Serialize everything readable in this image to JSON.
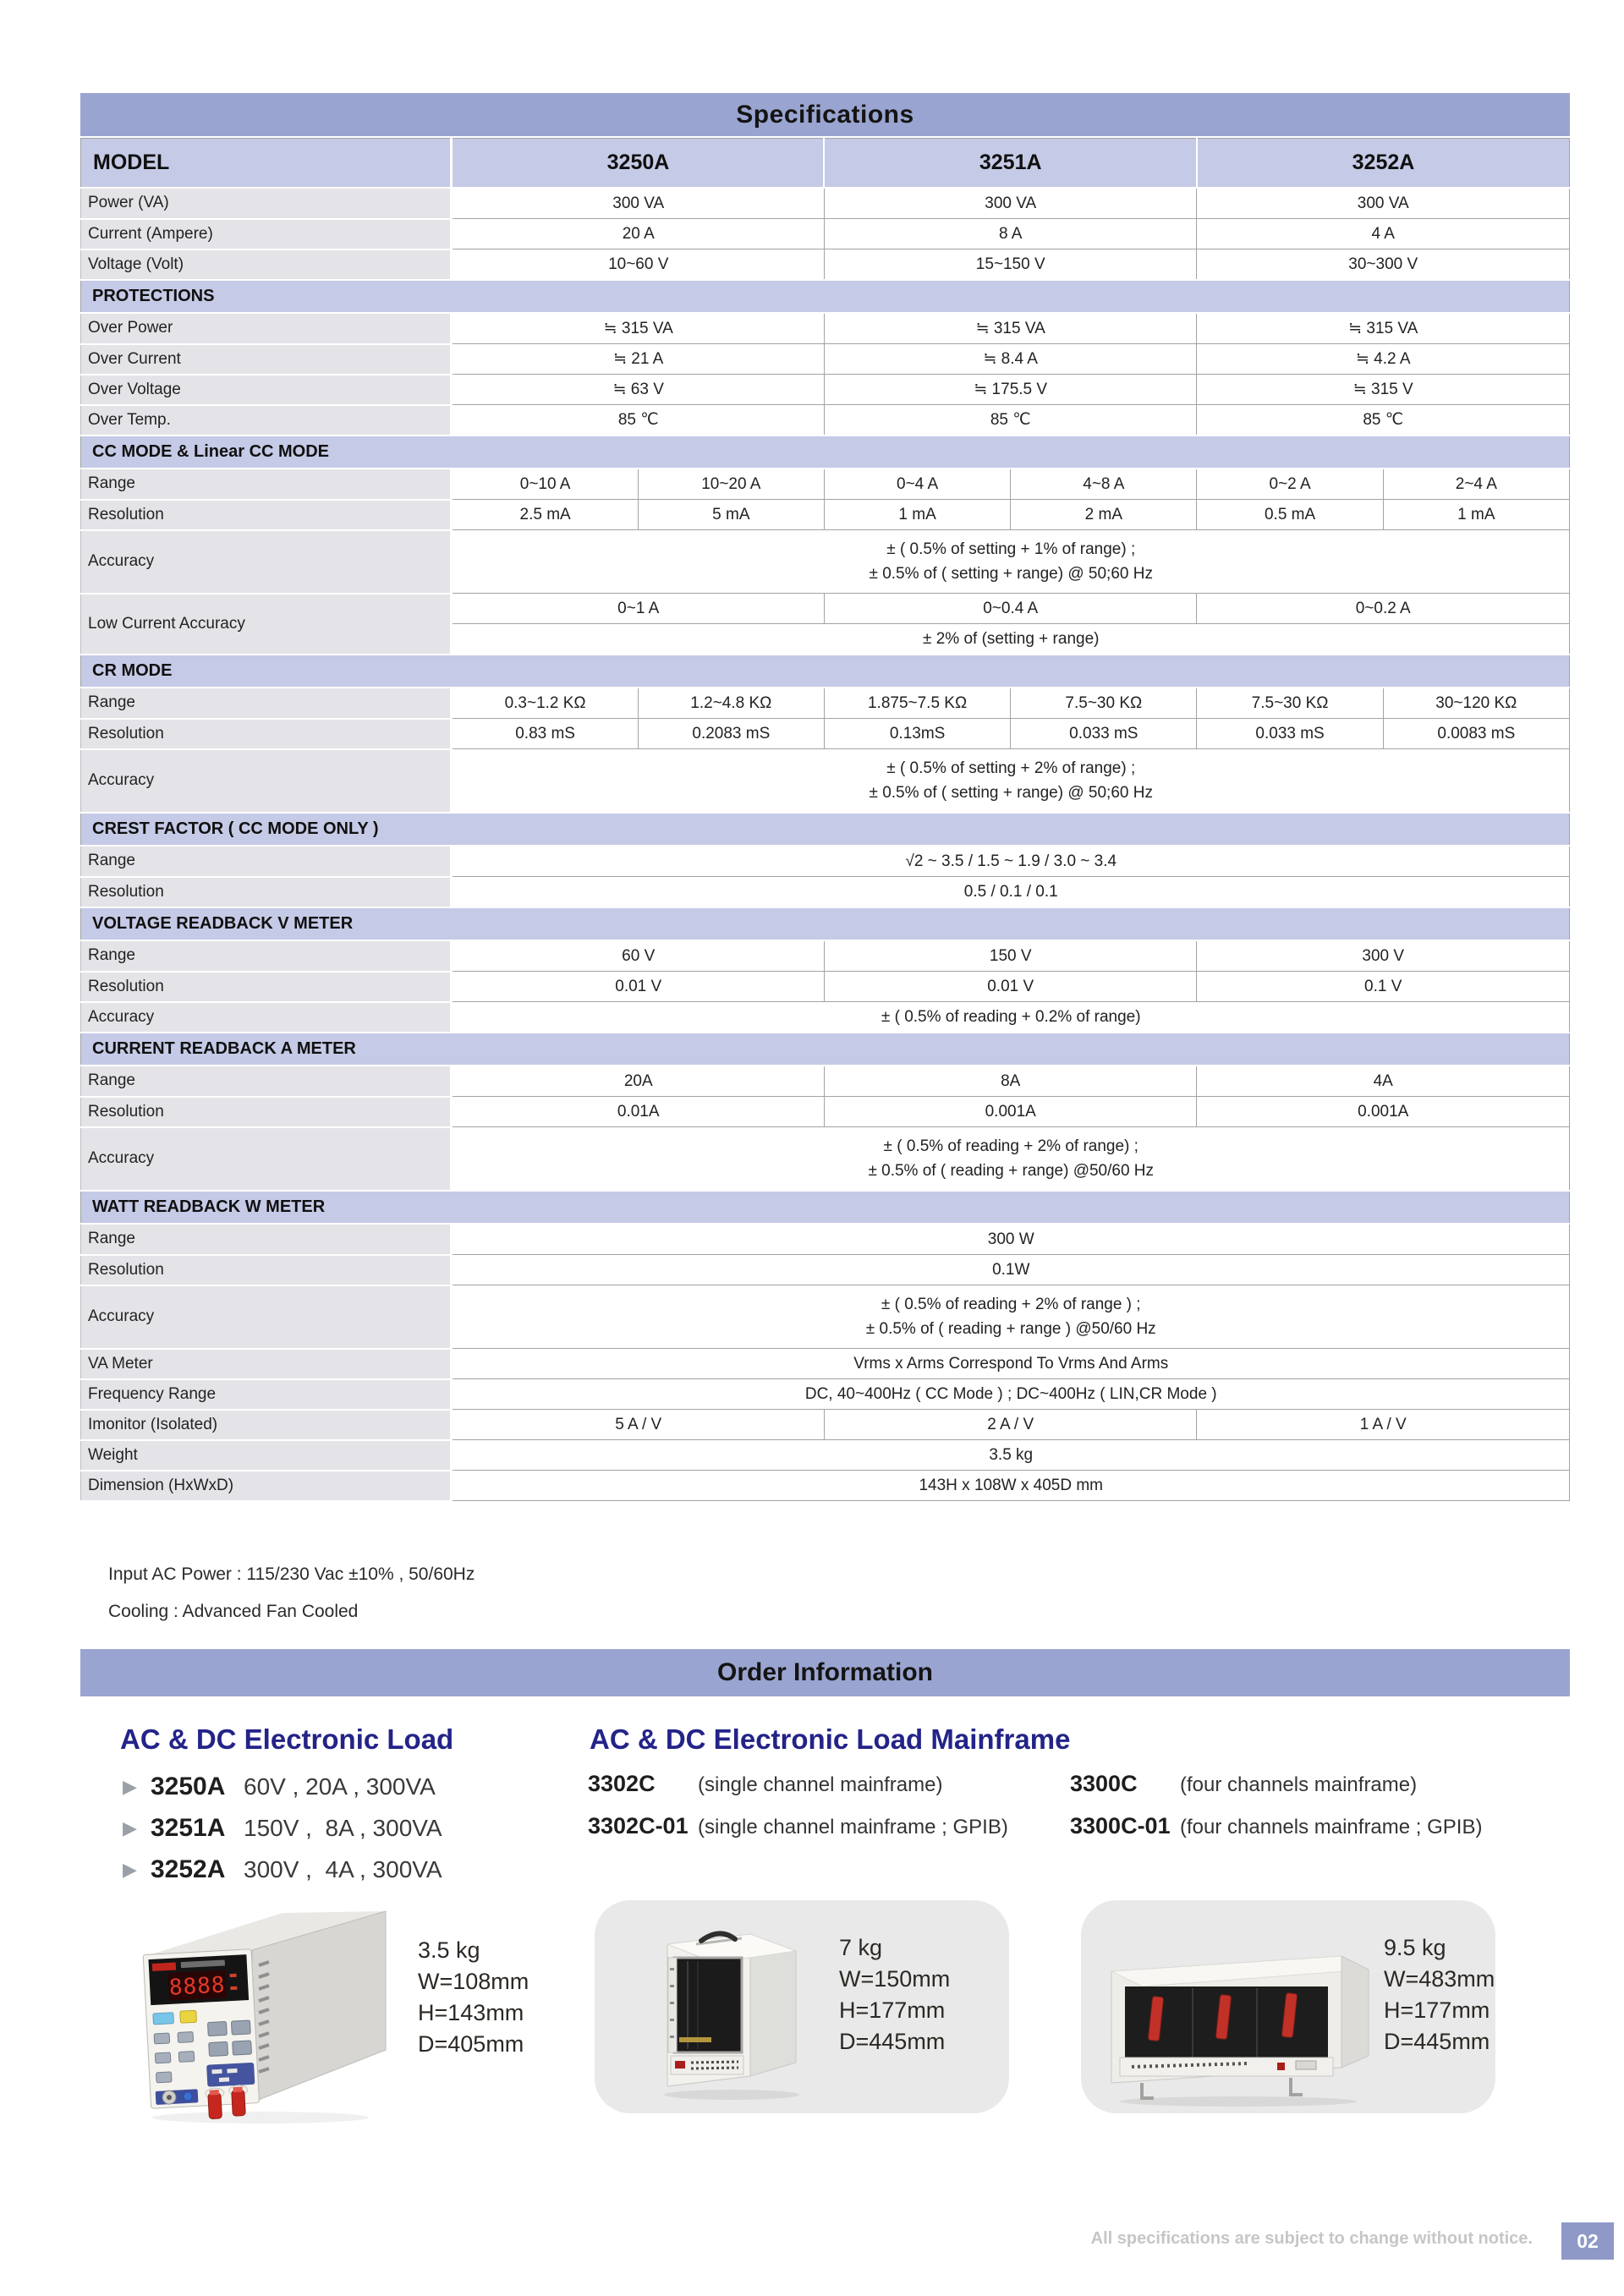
{
  "page": {
    "footer_note": "All specifications are subject to change without notice.",
    "page_number": "02"
  },
  "spec_table": {
    "title": "Specifications",
    "model_label": "MODEL",
    "columns": [
      "3250A",
      "3251A",
      "3252A"
    ],
    "rows": [
      {
        "label": "Power (VA)",
        "cells": [
          {
            "t": "300 VA",
            "s": 2
          },
          {
            "t": "300 VA",
            "s": 2
          },
          {
            "t": "300 VA",
            "s": 2
          }
        ]
      },
      {
        "label": "Current (Ampere)",
        "cells": [
          {
            "t": "20 A",
            "s": 2
          },
          {
            "t": "8 A",
            "s": 2
          },
          {
            "t": "4 A",
            "s": 2
          }
        ]
      },
      {
        "label": "Voltage (Volt)",
        "cells": [
          {
            "t": "10~60 V",
            "s": 2
          },
          {
            "t": "15~150 V",
            "s": 2
          },
          {
            "t": "30~300 V",
            "s": 2
          }
        ]
      },
      {
        "section": "PROTECTIONS"
      },
      {
        "label": "Over Power",
        "cells": [
          {
            "t": "≒ 315 VA",
            "s": 2
          },
          {
            "t": "≒ 315 VA",
            "s": 2
          },
          {
            "t": "≒ 315 VA",
            "s": 2
          }
        ]
      },
      {
        "label": "Over Current",
        "cells": [
          {
            "t": "≒ 21 A",
            "s": 2
          },
          {
            "t": "≒ 8.4 A",
            "s": 2
          },
          {
            "t": "≒ 4.2 A",
            "s": 2
          }
        ]
      },
      {
        "label": "Over Voltage",
        "cells": [
          {
            "t": "≒ 63 V",
            "s": 2
          },
          {
            "t": "≒ 175.5 V",
            "s": 2
          },
          {
            "t": "≒ 315 V",
            "s": 2
          }
        ]
      },
      {
        "label": "Over Temp.",
        "cells": [
          {
            "t": "85 ℃",
            "s": 2
          },
          {
            "t": "85 ℃",
            "s": 2
          },
          {
            "t": "85 ℃",
            "s": 2
          }
        ]
      },
      {
        "section": "CC MODE & Linear CC MODE"
      },
      {
        "label": "Range",
        "cells": [
          {
            "t": "0~10 A",
            "s": 1
          },
          {
            "t": "10~20 A",
            "s": 1
          },
          {
            "t": "0~4 A",
            "s": 1
          },
          {
            "t": "4~8 A",
            "s": 1
          },
          {
            "t": "0~2 A",
            "s": 1
          },
          {
            "t": "2~4 A",
            "s": 1
          }
        ]
      },
      {
        "label": "Resolution",
        "cells": [
          {
            "t": "2.5 mA",
            "s": 1
          },
          {
            "t": "5 mA",
            "s": 1
          },
          {
            "t": "1 mA",
            "s": 1
          },
          {
            "t": "2 mA",
            "s": 1
          },
          {
            "t": "0.5 mA",
            "s": 1
          },
          {
            "t": "1 mA",
            "s": 1
          }
        ]
      },
      {
        "label": "Accuracy",
        "tall": true,
        "cells": [
          {
            "t": "± ( 0.5% of setting + 1% of range) ;\n± 0.5% of ( setting + range) @ 50;60 Hz",
            "s": 6
          }
        ]
      },
      {
        "label": "Low Current Accuracy",
        "multi": [
          [
            {
              "t": "0~1 A",
              "s": 2
            },
            {
              "t": "0~0.4 A",
              "s": 2
            },
            {
              "t": "0~0.2 A",
              "s": 2
            }
          ],
          [
            {
              "t": "± 2% of (setting + range)",
              "s": 6
            }
          ]
        ]
      },
      {
        "section": "CR MODE"
      },
      {
        "label": "Range",
        "cells": [
          {
            "t": "0.3~1.2 KΩ",
            "s": 1
          },
          {
            "t": "1.2~4.8 KΩ",
            "s": 1
          },
          {
            "t": "1.875~7.5 KΩ",
            "s": 1
          },
          {
            "t": "7.5~30 KΩ",
            "s": 1
          },
          {
            "t": "7.5~30 KΩ",
            "s": 1
          },
          {
            "t": "30~120 KΩ",
            "s": 1
          }
        ]
      },
      {
        "label": "Resolution",
        "cells": [
          {
            "t": "0.83 mS",
            "s": 1
          },
          {
            "t": "0.2083 mS",
            "s": 1
          },
          {
            "t": "0.13mS",
            "s": 1
          },
          {
            "t": "0.033 mS",
            "s": 1
          },
          {
            "t": "0.033 mS",
            "s": 1
          },
          {
            "t": "0.0083 mS",
            "s": 1
          }
        ]
      },
      {
        "label": "Accuracy",
        "tall": true,
        "cells": [
          {
            "t": "± ( 0.5% of setting + 2% of range) ;\n± 0.5% of ( setting + range) @ 50;60 Hz",
            "s": 6
          }
        ]
      },
      {
        "section": "CREST FACTOR ( CC MODE ONLY )"
      },
      {
        "label": "Range",
        "cells": [
          {
            "t": "√2 ~ 3.5 / 1.5 ~ 1.9 / 3.0 ~ 3.4",
            "s": 6
          }
        ]
      },
      {
        "label": "Resolution",
        "cells": [
          {
            "t": "0.5 / 0.1 / 0.1",
            "s": 6
          }
        ]
      },
      {
        "section": "VOLTAGE READBACK V METER"
      },
      {
        "label": "Range",
        "cells": [
          {
            "t": "60 V",
            "s": 2
          },
          {
            "t": "150 V",
            "s": 2
          },
          {
            "t": "300 V",
            "s": 2
          }
        ]
      },
      {
        "label": "Resolution",
        "cells": [
          {
            "t": "0.01 V",
            "s": 2
          },
          {
            "t": "0.01 V",
            "s": 2
          },
          {
            "t": "0.1 V",
            "s": 2
          }
        ]
      },
      {
        "label": "Accuracy",
        "cells": [
          {
            "t": "± ( 0.5% of reading + 0.2% of range)",
            "s": 6
          }
        ]
      },
      {
        "section": "CURRENT READBACK A METER"
      },
      {
        "label": "Range",
        "cells": [
          {
            "t": "20A",
            "s": 2
          },
          {
            "t": "8A",
            "s": 2
          },
          {
            "t": "4A",
            "s": 2
          }
        ]
      },
      {
        "label": "Resolution",
        "cells": [
          {
            "t": "0.01A",
            "s": 2
          },
          {
            "t": "0.001A",
            "s": 2
          },
          {
            "t": "0.001A",
            "s": 2
          }
        ]
      },
      {
        "label": "Accuracy",
        "tall": true,
        "cells": [
          {
            "t": "± ( 0.5% of reading + 2% of range) ;\n± 0.5% of ( reading + range) @50/60 Hz",
            "s": 6
          }
        ]
      },
      {
        "section": "WATT READBACK W METER"
      },
      {
        "label": "Range",
        "cells": [
          {
            "t": "300 W",
            "s": 6
          }
        ]
      },
      {
        "label": "Resolution",
        "cells": [
          {
            "t": "0.1W",
            "s": 6
          }
        ]
      },
      {
        "label": "Accuracy",
        "tall": true,
        "cells": [
          {
            "t": "± ( 0.5% of reading + 2% of range ) ;\n± 0.5% of ( reading + range ) @50/60 Hz",
            "s": 6
          }
        ]
      },
      {
        "label": "VA Meter",
        "cells": [
          {
            "t": "Vrms x Arms Correspond To Vrms And Arms",
            "s": 6
          }
        ]
      },
      {
        "label": "Frequency Range",
        "cells": [
          {
            "t": "DC, 40~400Hz ( CC Mode ) ; DC~400Hz ( LIN,CR Mode )",
            "s": 6
          }
        ]
      },
      {
        "label": "Imonitor (Isolated)",
        "cells": [
          {
            "t": "5 A / V",
            "s": 2
          },
          {
            "t": "2 A / V",
            "s": 2
          },
          {
            "t": "1 A / V",
            "s": 2
          }
        ]
      },
      {
        "label": "Weight",
        "cells": [
          {
            "t": "3.5 kg",
            "s": 6
          }
        ]
      },
      {
        "label": "Dimension (HxWxD)",
        "cells": [
          {
            "t": "143H x 108W x 405D mm",
            "s": 6
          }
        ]
      }
    ]
  },
  "notes": [
    "Input AC Power : 115/230 Vac ±10% , 50/60Hz",
    "Cooling : Advanced Fan Cooled"
  ],
  "order": {
    "title": "Order Information",
    "load": {
      "heading": "AC & DC Electronic Load",
      "items": [
        {
          "model": "3250A",
          "spec": "60V , 20A , 300VA"
        },
        {
          "model": "3251A",
          "spec": "150V ,  8A , 300VA"
        },
        {
          "model": "3252A",
          "spec": "300V ,  4A , 300VA"
        }
      ]
    },
    "mainframe": {
      "heading": "AC & DC Electronic Load Mainframe",
      "items": [
        {
          "model": "3302C",
          "desc": "(single channel mainframe)"
        },
        {
          "model": "3300C",
          "desc": "(four channels mainframe)"
        },
        {
          "model": "3302C-01",
          "desc": "(single channel mainframe ; GPIB)"
        },
        {
          "model": "3300C-01",
          "desc": "(four channels mainframe ; GPIB)"
        }
      ]
    },
    "products": [
      {
        "name": "electronic-load-unit",
        "weight": "3.5 kg",
        "w": "W=108mm",
        "h": "H=143mm",
        "d": "D=405mm"
      },
      {
        "name": "single-channel-mainframe",
        "weight": "7 kg",
        "w": "W=150mm",
        "h": "H=177mm",
        "d": "D=445mm"
      },
      {
        "name": "four-channel-mainframe",
        "weight": "9.5 kg",
        "w": "W=483mm",
        "h": "H=177mm",
        "d": "D=445mm"
      }
    ]
  },
  "colors": {
    "band": "#9aa4d0",
    "section_bg": "#c5cae6",
    "label_bg": "#e4e4e8",
    "heading_navy": "#232388",
    "page_box": "#8e99c8",
    "led_red": "#e23a28"
  }
}
